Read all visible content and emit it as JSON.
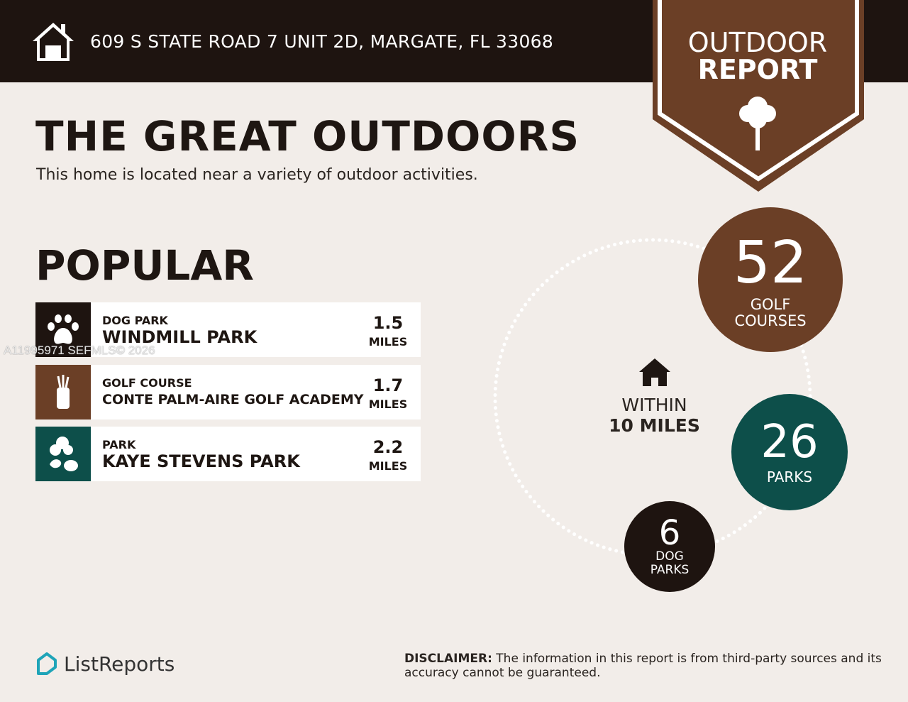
{
  "header": {
    "address": "609 S STATE ROAD 7 UNIT 2D, MARGATE, FL 33068",
    "icon": "home-icon"
  },
  "badge": {
    "line1": "OUTDOOR",
    "line2": "REPORT",
    "icon": "tree-icon"
  },
  "title": "THE GREAT OUTDOORS",
  "subtitle": "This home is located near a variety of outdoor activities.",
  "popular": {
    "heading": "POPULAR",
    "items": [
      {
        "category": "DOG PARK",
        "name": "WINDMILL PARK",
        "distance": "1.5",
        "unit": "MILES",
        "icon": "paw-icon",
        "color": "#1e1410"
      },
      {
        "category": "GOLF COURSE",
        "name": "CONTE PALM-AIRE GOLF ACADEMY",
        "distance": "1.7",
        "unit": "MILES",
        "icon": "golf-bag-icon",
        "color": "#6b3f26"
      },
      {
        "category": "PARK",
        "name": "KAYE STEVENS PARK",
        "distance": "2.2",
        "unit": "MILES",
        "icon": "park-icon",
        "color": "#0d4f4a"
      }
    ]
  },
  "watermark": "A11995971  SEFMLS© 2026",
  "summary": {
    "within_line1": "WITHIN",
    "within_line2": "10 MILES",
    "golf": {
      "count": "52",
      "label1": "GOLF",
      "label2": "COURSES",
      "color": "#6b3f26"
    },
    "parks": {
      "count": "26",
      "label1": "PARKS",
      "color": "#0d4f4a"
    },
    "dog": {
      "count": "6",
      "label1": "DOG",
      "label2": "PARKS",
      "color": "#1e1410"
    }
  },
  "footer": {
    "logo": "ListReports",
    "disclaimer_label": "DISCLAIMER:",
    "disclaimer_text": " The information in this report is from third-party sources and its accuracy cannot be guaranteed."
  }
}
